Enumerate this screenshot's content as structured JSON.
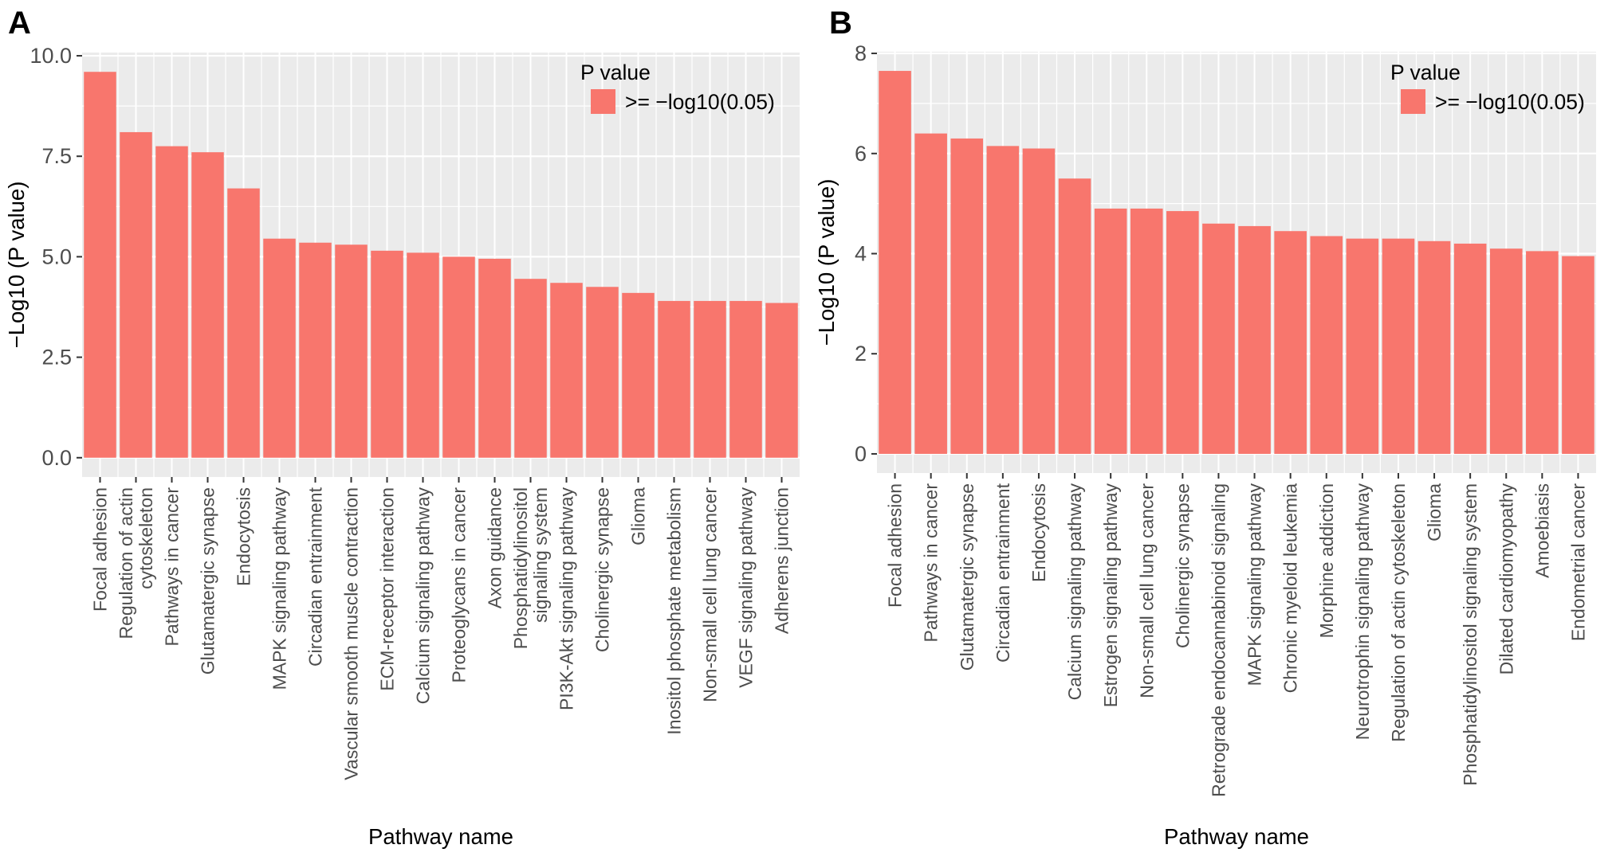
{
  "figure": {
    "background": "#ffffff",
    "panel_background": "#EBEBEB",
    "gridline_color": "#FFFFFF",
    "tick_color": "#333333",
    "tick_label_color": "#4D4D4D",
    "text_color": "#000000",
    "bar_color": "#F8766D"
  },
  "chart_data": [
    {
      "type": "bar",
      "panel_label": "A",
      "xlabel": "Pathway name",
      "ylabel": "−Log10 (P value)",
      "ylim": [
        0,
        10
      ],
      "ytick_values": [
        0,
        2.5,
        5,
        7.5,
        10
      ],
      "ytick_labels": [
        "0.0",
        "2.5",
        "5.0",
        "7.5",
        "10.0"
      ],
      "grid": true,
      "legend": {
        "title": "P value",
        "position": "top-right-inside",
        "entries": [
          {
            "label": ">= −log10(0.05)",
            "color": "#F8766D"
          }
        ]
      },
      "bar_color": "#F8766D",
      "categories": [
        "Focal adhesion",
        "Regulation of actin\ncytoskeleton",
        "Pathways in cancer",
        "Glutamatergic synapse",
        "Endocytosis",
        "MAPK signaling pathway",
        "Circadian entrainment",
        "Vascular smooth muscle contraction",
        "ECM-receptor interaction",
        "Calcium signaling pathway",
        "Proteoglycans in cancer",
        "Axon guidance",
        "Phosphatidylinositol\nsignaling system",
        "PI3K-Akt signaling pathway",
        "Cholinergic synapse",
        "Glioma",
        "Inositol phosphate metabolism",
        "Non-small cell lung cancer",
        "VEGF signaling pathway",
        "Adherens junction"
      ],
      "values": [
        9.6,
        8.1,
        7.75,
        7.6,
        6.7,
        5.45,
        5.35,
        5.3,
        5.15,
        5.1,
        5.0,
        4.95,
        4.45,
        4.35,
        4.25,
        4.1,
        3.9,
        3.9,
        3.9,
        3.85
      ]
    },
    {
      "type": "bar",
      "panel_label": "B",
      "xlabel": "Pathway name",
      "ylabel": "−Log10 (P value)",
      "ylim": [
        0,
        8
      ],
      "ytick_values": [
        0,
        2,
        4,
        6,
        8
      ],
      "ytick_labels": [
        "0",
        "2",
        "4",
        "6",
        "8"
      ],
      "grid": true,
      "legend": {
        "title": "P value",
        "position": "top-right-inside",
        "entries": [
          {
            "label": ">= −log10(0.05)",
            "color": "#F8766D"
          }
        ]
      },
      "bar_color": "#F8766D",
      "categories": [
        "Focal adhesion",
        "Pathways in cancer",
        "Glutamatergic synapse",
        "Circadian entrainment",
        "Endocytosis",
        "Calcium signaling pathway",
        "Estrogen signaling pathway",
        "Non-small cell lung cancer",
        "Cholinergic synapse",
        "Retrograde endocannabinoid signaling",
        "MAPK signaling pathway",
        "Chronic myeloid leukemia",
        "Morphine addiction",
        "Neurotrophin signaling pathway",
        "Regulation of actin cytoskeleton",
        "Glioma",
        "Phosphatidylinositol signaling system",
        "Dilated cardiomyopathy",
        "Amoebiasis",
        "Endometrial cancer"
      ],
      "values": [
        7.65,
        6.4,
        6.3,
        6.15,
        6.1,
        5.5,
        4.9,
        4.9,
        4.85,
        4.6,
        4.55,
        4.45,
        4.35,
        4.3,
        4.3,
        4.25,
        4.2,
        4.1,
        4.05,
        3.95
      ]
    }
  ]
}
